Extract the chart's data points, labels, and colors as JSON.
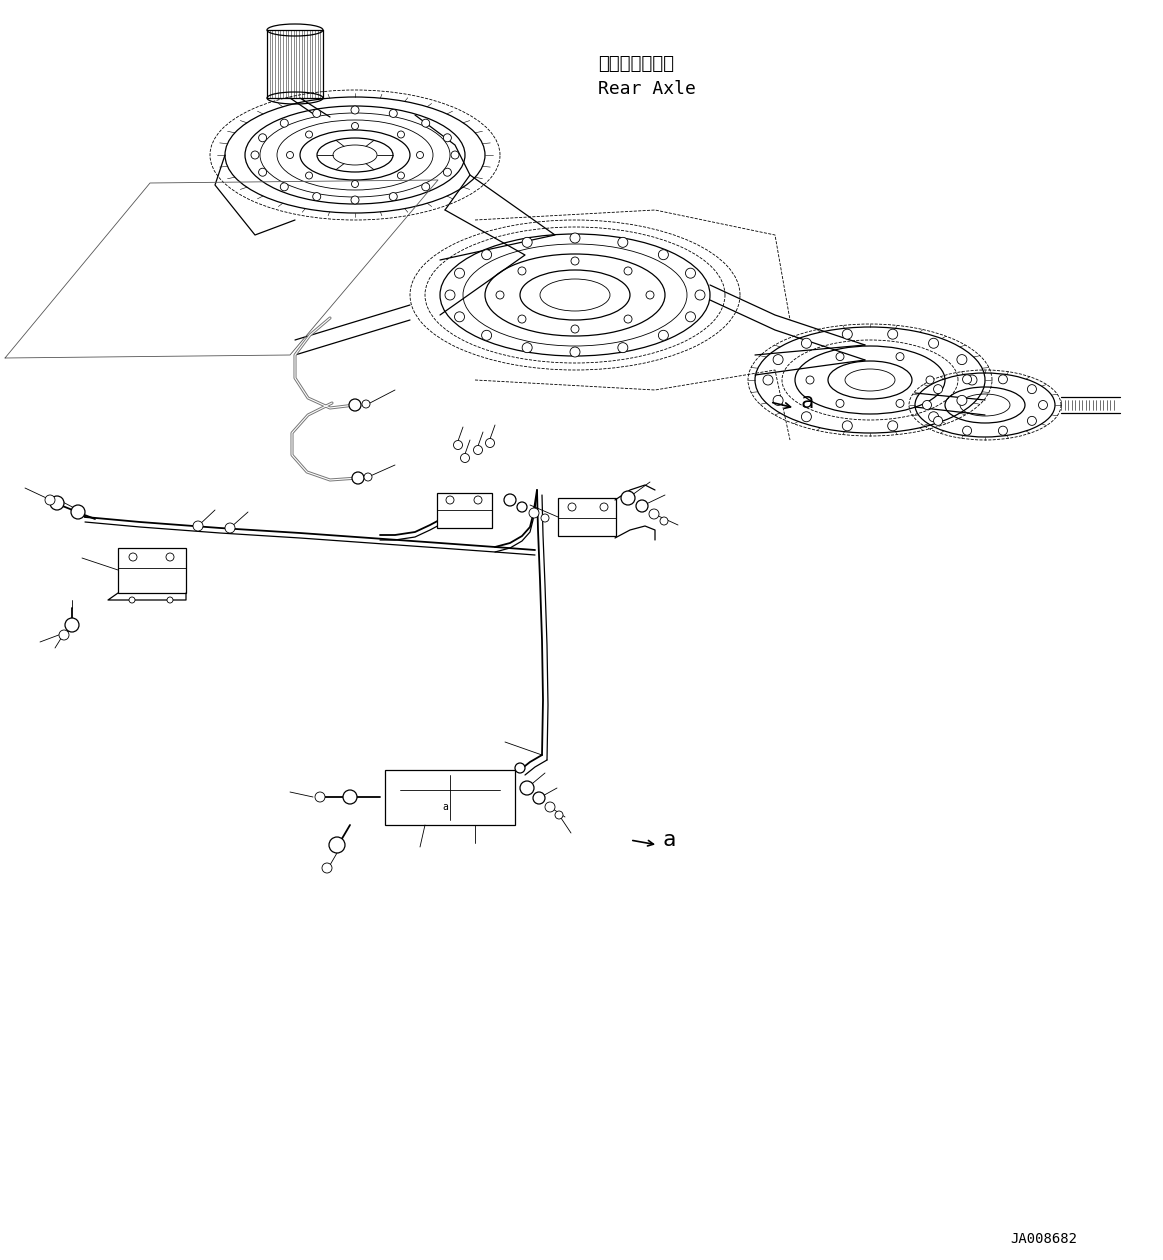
{
  "bg_color": "#ffffff",
  "line_color": "#000000",
  "label_rear_axle_jp": "リヤーアクスル",
  "label_rear_axle_en": "Rear Axle",
  "label_a1": "a",
  "label_a2": "a",
  "label_code": "JA008682",
  "fig_width": 11.63,
  "fig_height": 12.6,
  "dpi": 100
}
